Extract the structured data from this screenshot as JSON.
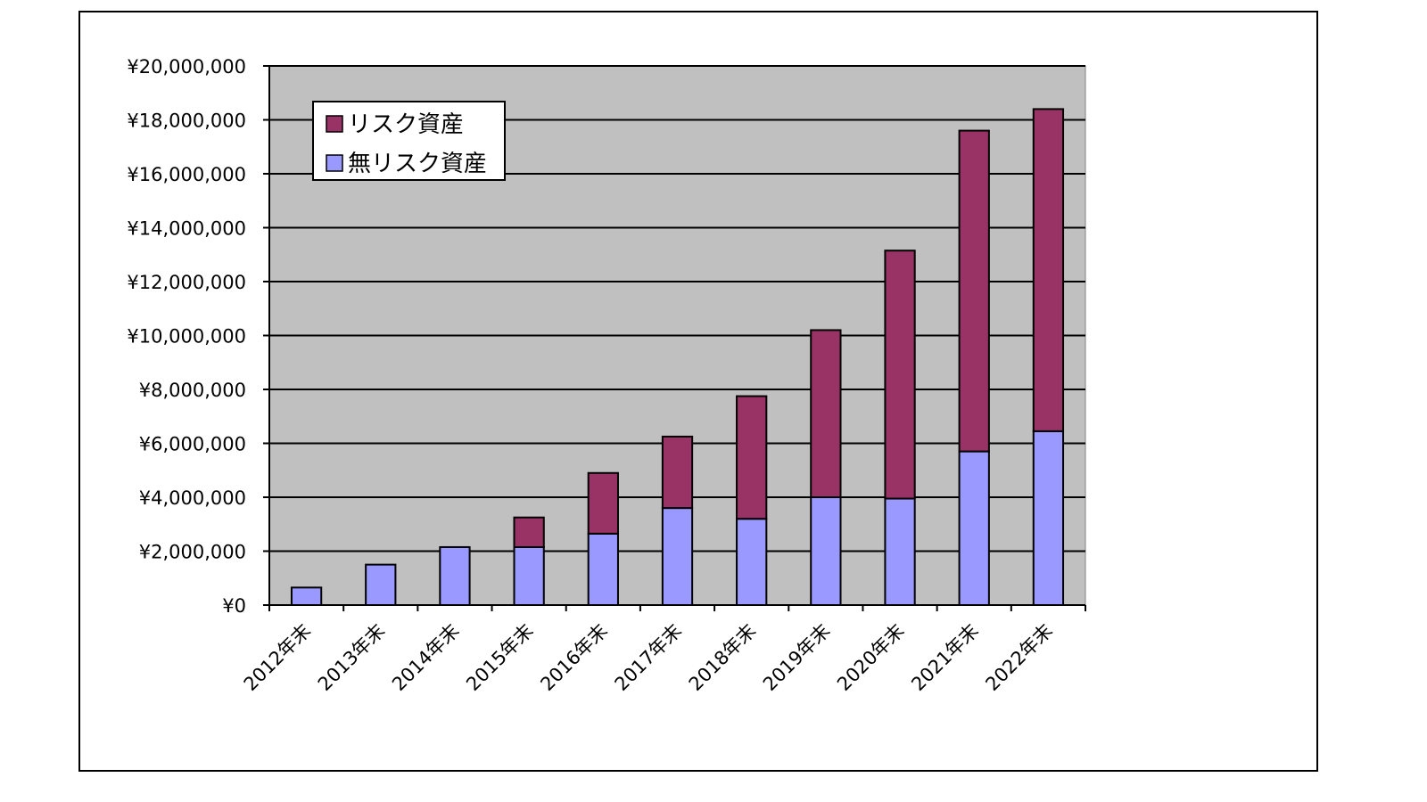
{
  "chart_data": {
    "type": "bar",
    "stacked": true,
    "categories": [
      "2012年末",
      "2013年末",
      "2014年末",
      "2015年末",
      "2016年末",
      "2017年末",
      "2018年末",
      "2019年末",
      "2020年末",
      "2021年末",
      "2022年末"
    ],
    "series": [
      {
        "name": "無リスク資産",
        "color": "#9999ff",
        "values": [
          650000,
          1500000,
          2150000,
          2150000,
          2650000,
          3600000,
          3200000,
          4000000,
          3950000,
          5700000,
          6450000
        ]
      },
      {
        "name": "リスク資産",
        "color": "#993366",
        "values": [
          0,
          0,
          0,
          1100000,
          2250000,
          2650000,
          4550000,
          6200000,
          9200000,
          11900000,
          11950000
        ]
      }
    ],
    "y_ticks": [
      "¥0",
      "¥2,000,000",
      "¥4,000,000",
      "¥6,000,000",
      "¥8,000,000",
      "¥10,000,000",
      "¥12,000,000",
      "¥14,000,000",
      "¥16,000,000",
      "¥18,000,000",
      "¥20,000,000"
    ],
    "ylim": [
      0,
      20000000
    ],
    "y_step": 2000000,
    "grid": true,
    "legend_position": "top-left",
    "legend_order": [
      "リスク資産",
      "無リスク資産"
    ],
    "plot_background": "#c0c0c0",
    "title": "",
    "xlabel": "",
    "ylabel": ""
  }
}
